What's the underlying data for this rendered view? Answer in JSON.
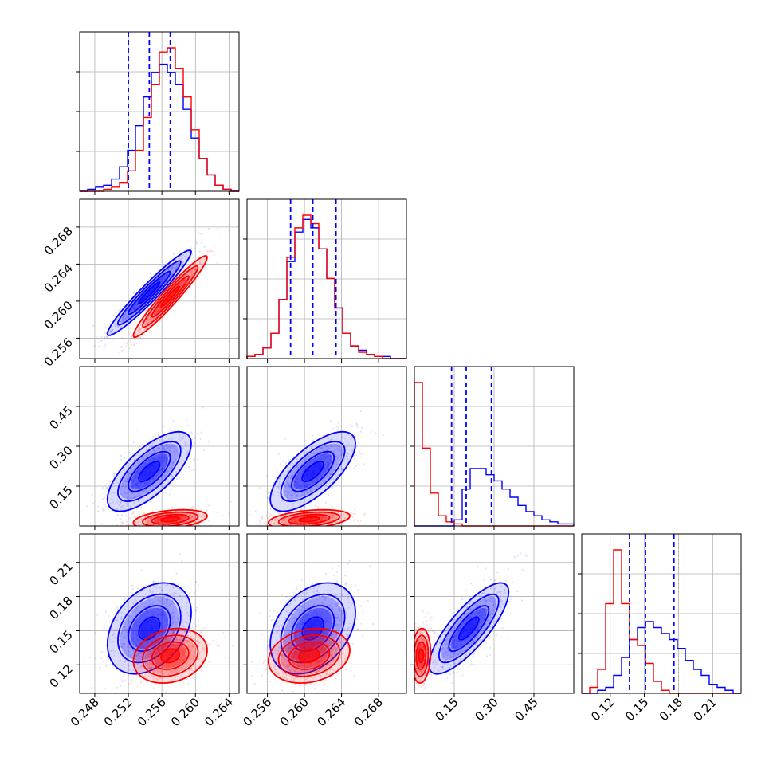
{
  "colors": {
    "series_a": "#0000ff",
    "series_b": "#ff0000",
    "grid": "#b0b0b0",
    "quantile_line": "#0000ff"
  },
  "chart_data": {
    "type": "corner",
    "grid": true,
    "parameters": [
      {
        "range": [
          0.2462,
          0.2652
        ],
        "ticks": [
          0.248,
          0.252,
          0.256,
          0.26,
          0.264
        ],
        "tick_labels": [
          "0.248",
          "0.252",
          "0.256",
          "0.260",
          "0.264"
        ]
      },
      {
        "range": [
          0.2538,
          0.271
        ],
        "ticks": [
          0.256,
          0.26,
          0.264,
          0.268
        ],
        "tick_labels": [
          "0.256",
          "0.260",
          "0.264",
          "0.268"
        ]
      },
      {
        "range": [
          0.0,
          0.6
        ],
        "ticks": [
          0.15,
          0.3,
          0.45
        ],
        "tick_labels": [
          "0.15",
          "0.30",
          "0.45"
        ]
      },
      {
        "range": [
          0.095,
          0.235
        ],
        "ticks": [
          0.12,
          0.15,
          0.18,
          0.21
        ],
        "tick_labels": [
          "0.12",
          "0.15",
          "0.18",
          "0.21"
        ]
      }
    ],
    "series": [
      {
        "color_key": "series_a",
        "mean": [
          0.2545,
          0.2609,
          0.205,
          0.152
        ],
        "std": [
          0.0025,
          0.0023,
          0.075,
          0.02
        ],
        "quantiles_16_50_84": [
          [
            0.252,
            0.2545,
            0.257
          ],
          [
            0.2585,
            0.2609,
            0.2634
          ],
          [
            0.14,
            0.195,
            0.29
          ],
          [
            0.137,
            0.151,
            0.176
          ]
        ]
      },
      {
        "color_key": "series_b",
        "mean": [
          0.257,
          0.2605,
          0.025,
          0.128
        ],
        "std": [
          0.0022,
          0.0022,
          0.018,
          0.012
        ]
      }
    ],
    "correlations": {
      "series_a": [
        [
          1,
          0.96,
          0.7,
          0.35
        ],
        [
          0.96,
          1,
          0.7,
          0.35
        ],
        [
          0.7,
          0.7,
          1,
          0.8
        ],
        [
          0.35,
          0.35,
          0.8,
          1
        ]
      ],
      "series_b": [
        [
          1,
          0.96,
          0.35,
          0.2
        ],
        [
          0.96,
          1,
          0.35,
          0.2
        ],
        [
          0.35,
          0.35,
          1,
          0.1
        ],
        [
          0.2,
          0.2,
          0.1,
          1
        ]
      ]
    },
    "histograms": {
      "series_a": [
        [
          0,
          1,
          2,
          3,
          6,
          12,
          20,
          32,
          46,
          58,
          62,
          58,
          52,
          40,
          26,
          16,
          8,
          3,
          1,
          0
        ],
        [
          1,
          2,
          5,
          12,
          28,
          46,
          60,
          66,
          62,
          52,
          38,
          24,
          12,
          6,
          4,
          2,
          1,
          1,
          0,
          0
        ],
        [
          0,
          0,
          0,
          0,
          0,
          3,
          18,
          28,
          28,
          25,
          22,
          18,
          14,
          10,
          7,
          5,
          3,
          2,
          1,
          1
        ],
        [
          0,
          0,
          1,
          2,
          6,
          12,
          18,
          22,
          24,
          22,
          20,
          18,
          15,
          11,
          8,
          6,
          3,
          2,
          1,
          0
        ]
      ],
      "series_b": [
        [
          0,
          0,
          0,
          1,
          2,
          4,
          10,
          20,
          36,
          52,
          68,
          70,
          60,
          46,
          30,
          16,
          8,
          3,
          1,
          0
        ],
        [
          1,
          2,
          5,
          12,
          28,
          48,
          62,
          68,
          64,
          52,
          38,
          24,
          12,
          6,
          3,
          2,
          1,
          0,
          0,
          0
        ],
        [
          70,
          38,
          16,
          5,
          2,
          1,
          0,
          0,
          0,
          0,
          0,
          0,
          0,
          0,
          0,
          0,
          0,
          0,
          0,
          0
        ],
        [
          0,
          2,
          8,
          30,
          48,
          30,
          18,
          16,
          10,
          4,
          1,
          0,
          0,
          0,
          0,
          0,
          0,
          0,
          0,
          0
        ]
      ]
    }
  }
}
